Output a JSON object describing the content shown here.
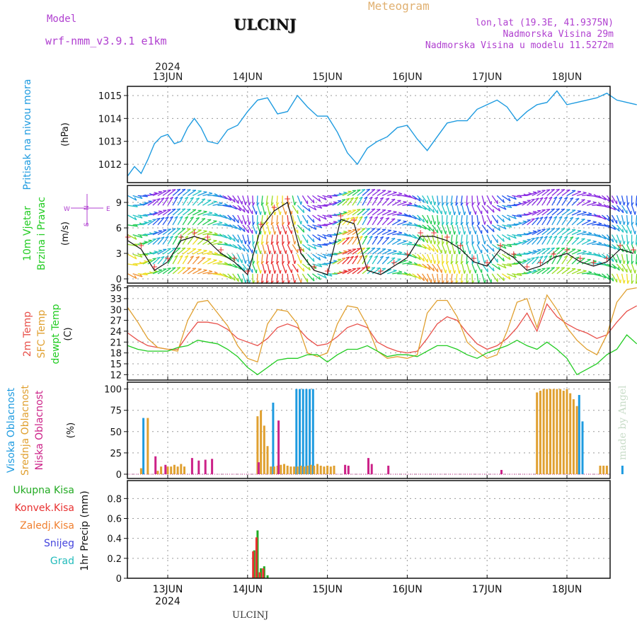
{
  "header": {
    "model_label": "Model",
    "model_name": "wrf-nmm_v3.9.1 e1km",
    "city": "ULCINJ",
    "product": "Meteogram",
    "lonlat": "lon,lat (19.3E, 41.9375N)",
    "altitude": "Nadmorska Visina 29m",
    "model_altitude": "Nadmorska Visina u modelu 11.5272m",
    "footer_city": "ULCINJ",
    "credit": "made by Angel"
  },
  "colors": {
    "pressure": "#1e9be0",
    "temp2m": "#e8504a",
    "sfc": "#e0a030",
    "dewpt": "#22cc22",
    "high_cloud": "#1e9be0",
    "mid_cloud": "#e0a030",
    "low_cloud": "#cc2288",
    "total_precip": "#22aa22",
    "conv_precip": "#e83030",
    "strat_precip": "#f08030",
    "snow": "#4444dd",
    "grad": "#22bbbb",
    "model": "#b040d0",
    "meteogram_title": "#e0b070"
  },
  "chart_data": [
    {
      "type": "line",
      "id": "pressure",
      "ylabel": "Pritisak na nivou mora",
      "unit": "(hPa)",
      "ylim": [
        1011.2,
        1015.4
      ],
      "yticks": [
        1012,
        1013,
        1014,
        1015
      ],
      "x": [
        0,
        2,
        4,
        6,
        8,
        10,
        12,
        14,
        16,
        18,
        20,
        22,
        24,
        27,
        30,
        33,
        36,
        39,
        42,
        45,
        48,
        51,
        54,
        57,
        60,
        63,
        66,
        69,
        72,
        75,
        78,
        81,
        84,
        87,
        90,
        93,
        96,
        99,
        102,
        105,
        108,
        111,
        114,
        117,
        120,
        123,
        126,
        129,
        132,
        135,
        138,
        141,
        144,
        147,
        150,
        153
      ],
      "values": [
        1011.5,
        1011.9,
        1011.6,
        1012.2,
        1012.9,
        1013.2,
        1013.3,
        1012.9,
        1013.0,
        1013.6,
        1014.0,
        1013.6,
        1013.0,
        1012.9,
        1013.5,
        1013.7,
        1014.3,
        1014.8,
        1014.9,
        1014.2,
        1014.3,
        1015.0,
        1014.5,
        1014.1,
        1014.1,
        1013.4,
        1012.5,
        1012.0,
        1012.7,
        1013.0,
        1013.2,
        1013.6,
        1013.7,
        1013.1,
        1012.6,
        1013.2,
        1013.8,
        1013.9,
        1013.9,
        1014.4,
        1014.6,
        1014.8,
        1014.5,
        1013.9,
        1014.3,
        1014.6,
        1014.7,
        1015.2,
        1014.6,
        1014.7,
        1014.8,
        1014.9,
        1015.1,
        1014.8,
        1014.7,
        1014.6
      ]
    },
    {
      "type": "line",
      "id": "wind",
      "ylabel_lines": [
        "10m Vjetar",
        "Brzina i Pravac"
      ],
      "unit": "(m/s)",
      "compass": {
        "north": "N",
        "west": "W",
        "east": "E",
        "south": "S"
      },
      "ylim": [
        -0.5,
        11
      ],
      "yticks": [
        0,
        3,
        6,
        9
      ],
      "x": [
        0,
        4,
        8,
        12,
        16,
        20,
        24,
        28,
        32,
        36,
        40,
        44,
        48,
        52,
        56,
        60,
        64,
        68,
        72,
        76,
        80,
        84,
        88,
        92,
        96,
        100,
        104,
        108,
        112,
        116,
        120,
        124,
        128,
        132,
        136,
        140,
        144,
        148,
        152
      ],
      "values": [
        4.5,
        3.5,
        1.0,
        2.0,
        4.5,
        5.0,
        4.5,
        3.0,
        2.0,
        0.5,
        6.0,
        8.0,
        9.0,
        3.0,
        1.0,
        0.5,
        7.0,
        6.5,
        1.0,
        0.5,
        1.5,
        2.5,
        5.0,
        5.0,
        4.5,
        3.5,
        2.0,
        1.5,
        3.5,
        2.5,
        1.0,
        1.5,
        2.5,
        3.0,
        2.0,
        1.5,
        2.0,
        3.5,
        3.0
      ],
      "gust_marker": "+"
    },
    {
      "type": "line",
      "id": "temperature",
      "ylabel_lines": [
        "2m Temp",
        "SFC Temp",
        "dewpt Temp"
      ],
      "unit": "(C)",
      "ylim": [
        10.5,
        36.5
      ],
      "yticks": [
        12,
        15,
        18,
        21,
        24,
        27,
        30,
        33,
        36
      ],
      "x": [
        0,
        3,
        6,
        9,
        12,
        15,
        18,
        21,
        24,
        27,
        30,
        33,
        36,
        39,
        42,
        45,
        48,
        51,
        54,
        57,
        60,
        63,
        66,
        69,
        72,
        75,
        78,
        81,
        84,
        87,
        90,
        93,
        96,
        99,
        102,
        105,
        108,
        111,
        114,
        117,
        120,
        123,
        126,
        129,
        132,
        135,
        138,
        141,
        144,
        147,
        150,
        153
      ],
      "series": [
        {
          "name": "2m Temp",
          "color_key": "temp2m",
          "values": [
            23.5,
            21.5,
            20.0,
            19.5,
            19.0,
            19.0,
            23.0,
            26.5,
            26.5,
            26.0,
            24.5,
            22.0,
            21.0,
            20.0,
            22.0,
            25.0,
            26.0,
            25.0,
            22.0,
            20.0,
            20.5,
            22.5,
            25.0,
            26.0,
            25.0,
            21.0,
            19.5,
            18.5,
            18.0,
            18.5,
            22.0,
            26.0,
            28.0,
            27.0,
            23.5,
            20.5,
            19.0,
            20.0,
            22.0,
            25.0,
            29.0,
            24.0,
            31.5,
            28.0,
            26.0,
            24.5,
            23.5,
            22.0,
            23.0,
            26.5,
            29.5,
            31.0
          ]
        },
        {
          "name": "SFC Temp",
          "color_key": "sfc",
          "values": [
            30.5,
            26.5,
            22.0,
            19.5,
            19.0,
            18.5,
            27.0,
            32.0,
            32.5,
            29.0,
            25.5,
            20.0,
            16.5,
            15.5,
            26.0,
            30.0,
            29.5,
            26.0,
            18.0,
            17.0,
            18.0,
            26.0,
            31.0,
            30.5,
            25.5,
            18.5,
            16.5,
            17.0,
            16.5,
            17.5,
            29.0,
            32.5,
            32.5,
            28.0,
            21.0,
            18.5,
            16.5,
            17.5,
            24.0,
            32.0,
            33.0,
            25.0,
            34.0,
            30.0,
            25.0,
            21.5,
            19.0,
            17.5,
            23.0,
            32.0,
            35.5,
            36.0
          ]
        },
        {
          "name": "dewpt Temp",
          "color_key": "dewpt",
          "values": [
            20.0,
            19.0,
            18.5,
            18.5,
            18.5,
            19.5,
            20.0,
            21.5,
            21.0,
            20.5,
            19.0,
            17.0,
            14.0,
            12.0,
            14.0,
            16.0,
            16.5,
            16.5,
            17.5,
            17.5,
            15.5,
            17.5,
            19.0,
            19.0,
            20.0,
            18.5,
            17.0,
            17.5,
            17.5,
            17.0,
            18.5,
            20.0,
            20.0,
            19.0,
            17.5,
            16.5,
            18.0,
            19.0,
            20.0,
            21.5,
            20.0,
            19.0,
            21.0,
            19.0,
            16.5,
            12.0,
            13.5,
            15.0,
            17.5,
            19.0,
            23.0,
            20.5
          ]
        }
      ]
    },
    {
      "type": "bar",
      "id": "cloud",
      "ylabel_lines": [
        "Visoka Oblacnost",
        "Srednja Oblacnost",
        "Niska Oblacnost"
      ],
      "unit": "(%)",
      "ylim": [
        -5,
        108
      ],
      "yticks": [
        0,
        25,
        50,
        75,
        100
      ],
      "series": [
        {
          "name": "Visoka Oblacnost",
          "color_key": "high_cloud",
          "x": [
            5,
            44,
            51,
            52,
            53,
            54,
            55,
            56,
            136,
            137,
            149
          ],
          "values": [
            66,
            84,
            100,
            100,
            100,
            100,
            100,
            100,
            93,
            62,
            10
          ]
        },
        {
          "name": "Srednja Oblacnost",
          "color_key": "mid_cloud",
          "x": [
            4,
            6,
            9,
            10,
            12,
            13,
            14,
            15,
            16,
            17,
            39,
            40,
            41,
            42,
            43,
            44,
            45,
            46,
            47,
            48,
            49,
            50,
            51,
            52,
            53,
            54,
            55,
            56,
            57,
            58,
            59,
            60,
            61,
            62,
            123,
            124,
            125,
            126,
            127,
            128,
            129,
            130,
            131,
            132,
            133,
            134,
            135,
            142,
            143,
            144
          ],
          "values": [
            7,
            66,
            4,
            9,
            9,
            9,
            11,
            9,
            12,
            9,
            68,
            75,
            57,
            33,
            9,
            9,
            10,
            11,
            12,
            10,
            9,
            9,
            9,
            10,
            9,
            10,
            11,
            10,
            12,
            10,
            9,
            10,
            9,
            10,
            96,
            98,
            100,
            100,
            100,
            100,
            100,
            100,
            98,
            100,
            95,
            88,
            80,
            10,
            10,
            10
          ]
        },
        {
          "name": "Niska Oblacnost",
          "color_key": "low_cloud",
          "x": [
            8,
            11,
            19,
            21,
            23,
            25,
            39,
            45,
            65,
            66,
            72,
            73,
            78,
            112
          ],
          "values": [
            21,
            11,
            19,
            16,
            17,
            18,
            14,
            63,
            11,
            10,
            19,
            12,
            10,
            5
          ]
        }
      ]
    },
    {
      "type": "bar",
      "id": "precip",
      "ylabel": "1hr Precip (mm)",
      "legend": [
        "Ukupna Kisa",
        "Konvek.Kisa",
        "Zaledj.Kisa",
        "Snijeg",
        "Grad"
      ],
      "ylim": [
        0,
        0.98
      ],
      "yticks": [
        0,
        0.2,
        0.4,
        0.6,
        0.8
      ],
      "series": [
        {
          "name": "Ukupna Kisa",
          "color_key": "total_precip",
          "x": [
            38,
            39,
            40,
            41,
            42
          ],
          "values": [
            0.28,
            0.48,
            0.1,
            0.12,
            0.03
          ]
        },
        {
          "name": "Konvek.Kisa",
          "color_key": "conv_precip",
          "x": [
            38,
            39,
            40,
            41
          ],
          "values": [
            0.27,
            0.41,
            0.06,
            0.1
          ]
        }
      ]
    }
  ],
  "xaxis": {
    "year": "2024",
    "day_labels": [
      "13JUN",
      "14JUN",
      "15JUN",
      "16JUN",
      "17JUN",
      "18JUN"
    ],
    "day_positions_hours": [
      12,
      36,
      60,
      84,
      108,
      132
    ],
    "range_hours": [
      0,
      144
    ]
  }
}
